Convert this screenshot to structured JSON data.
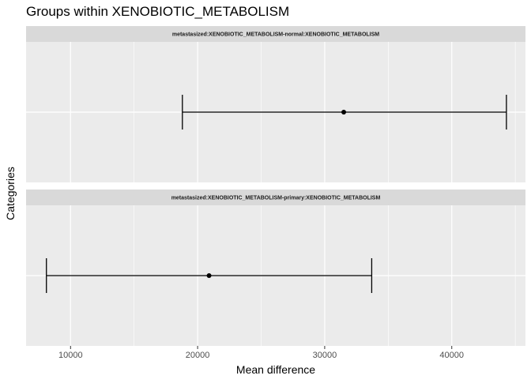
{
  "chart_data": {
    "type": "errorbar",
    "title": "Groups within XENOBIOTIC_METABOLISM",
    "xlabel": "Mean difference",
    "ylabel": "Categories",
    "xlim": [
      6500,
      45800
    ],
    "x_ticks": [
      10000,
      20000,
      30000,
      40000
    ],
    "x_tick_labels": [
      "10000",
      "20000",
      "30000",
      "40000"
    ],
    "grid": true,
    "panels": [
      {
        "label": "metastasized:XENOBIOTIC_METABOLISM-normal:XENOBIOTIC_METABOLISM",
        "mean": 31500,
        "lower": 18800,
        "upper": 44300
      },
      {
        "label": "metastasized:XENOBIOTIC_METABOLISM-primary:XENOBIOTIC_METABOLISM",
        "mean": 20900,
        "lower": 8100,
        "upper": 33700
      }
    ]
  },
  "colors": {
    "panel_bg": "#ebebeb",
    "strip_bg": "#d9d9d9",
    "grid": "#ffffff",
    "mark": "#000000",
    "text": "#000000",
    "tick_text": "#4d4d4d"
  }
}
